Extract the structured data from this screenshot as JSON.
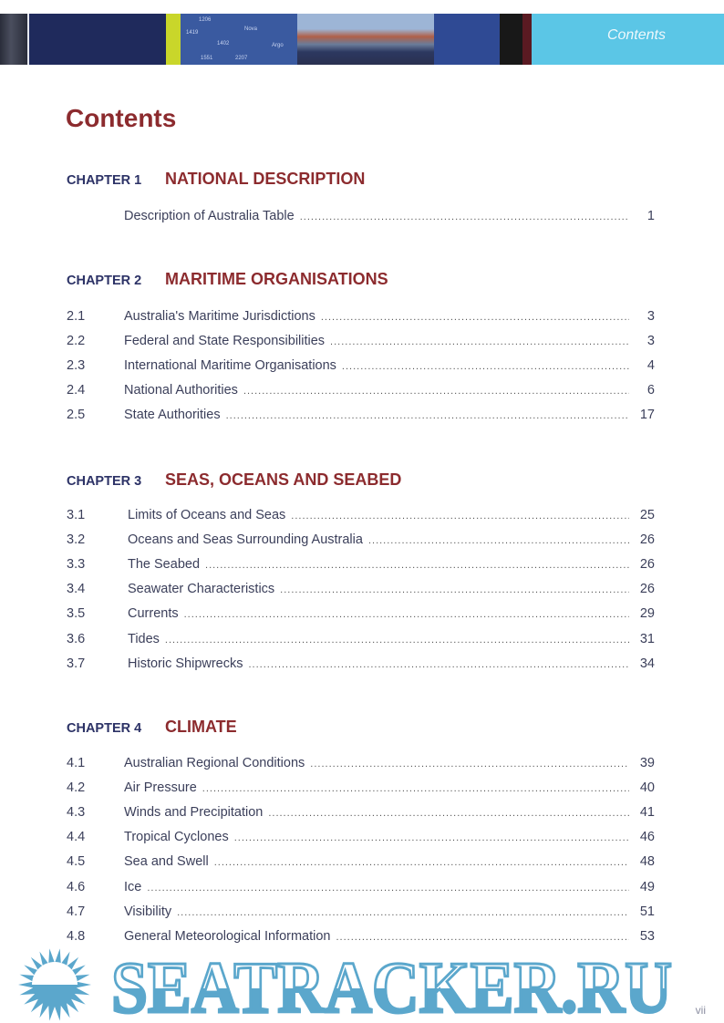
{
  "header": {
    "section_label": "Contents",
    "chart_labels": [
      "1206",
      "1419",
      "1402",
      "Nova",
      "1551",
      "2207",
      "Argo"
    ]
  },
  "title": "Contents",
  "chapters": [
    {
      "label": "CHAPTER 1",
      "name": "NATIONAL DESCRIPTION",
      "entries": [
        {
          "num": "",
          "title": "Description of Australia Table",
          "page": "1"
        }
      ]
    },
    {
      "label": "CHAPTER 2",
      "name": "MARITIME ORGANISATIONS",
      "entries": [
        {
          "num": "2.1",
          "title": "Australia's Maritime Jurisdictions",
          "page": "3"
        },
        {
          "num": "2.2",
          "title": "Federal and State Responsibilities",
          "page": "3"
        },
        {
          "num": "2.3",
          "title": "International Maritime Organisations",
          "page": "4"
        },
        {
          "num": "2.4",
          "title": "National Authorities",
          "page": "6"
        },
        {
          "num": "2.5",
          "title": "State Authorities",
          "page": "17"
        }
      ]
    },
    {
      "label": "CHAPTER 3",
      "name": "SEAS, OCEANS AND SEABED",
      "entries": [
        {
          "num": "3.1",
          "title": "Limits of Oceans and Seas",
          "page": "25"
        },
        {
          "num": "3.2",
          "title": "Oceans and Seas Surrounding Australia",
          "page": "26"
        },
        {
          "num": "3.3",
          "title": "The Seabed",
          "page": "26"
        },
        {
          "num": "3.4",
          "title": "Seawater Characteristics",
          "page": "26"
        },
        {
          "num": "3.5",
          "title": "Currents",
          "page": "29"
        },
        {
          "num": "3.6",
          "title": "Tides",
          "page": "31"
        },
        {
          "num": "3.7",
          "title": "Historic Shipwrecks",
          "page": "34"
        }
      ]
    },
    {
      "label": "CHAPTER 4",
      "name": "CLIMATE",
      "entries": [
        {
          "num": "4.1",
          "title": "Australian Regional Conditions",
          "page": "39"
        },
        {
          "num": "4.2",
          "title": "Air Pressure",
          "page": "40"
        },
        {
          "num": "4.3",
          "title": "Winds and Precipitation",
          "page": "41"
        },
        {
          "num": "4.4",
          "title": "Tropical Cyclones",
          "page": "46"
        },
        {
          "num": "4.5",
          "title": "Sea and Swell",
          "page": "48"
        },
        {
          "num": "4.6",
          "title": "Ice",
          "page": "49"
        },
        {
          "num": "4.7",
          "title": "Visibility",
          "page": "51"
        },
        {
          "num": "4.8",
          "title": "General Meteorological Information",
          "page": "53"
        }
      ]
    }
  ],
  "folio": "vii",
  "watermark": {
    "text": "SEATRACKER.RU",
    "color": "#5ba7cc"
  },
  "colors": {
    "heading": "#8c2b2e",
    "chapter_label": "#2c3266",
    "banner_accent": "#5bc6e6"
  }
}
